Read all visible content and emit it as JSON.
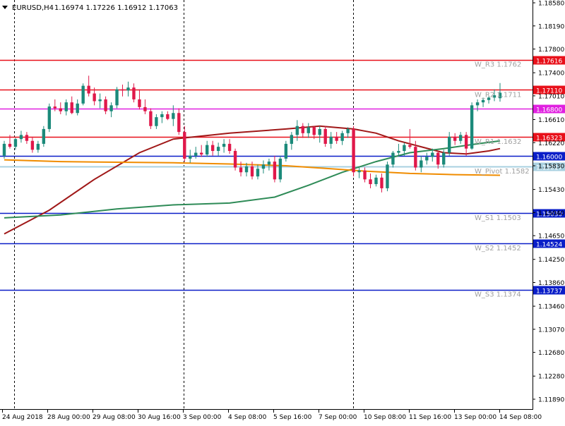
{
  "header": {
    "symbol": "EURUSD,H4",
    "ohlc": "1.16974 1.17226 1.16912 1.17063"
  },
  "colors": {
    "bull": "#1b8a7a",
    "bear": "#e0184a",
    "red_level": "#e8101a",
    "blue_level": "#0a1ec8",
    "magenta_level": "#e020e0",
    "pivot_level": "#a8d0e0",
    "ma_red": "#a01818",
    "ma_green": "#2e8b57",
    "ma_orange": "#f08c00",
    "pivot_label": "#a0a0a0"
  },
  "chart_data": {
    "type": "candlestick",
    "y_axis_ticks": [
      "1.18580",
      "1.18190",
      "1.17800",
      "1.17400",
      "1.17010",
      "1.16610",
      "1.16220",
      "1.15830",
      "1.15430",
      "1.15040",
      "1.14650",
      "1.14250",
      "1.13860",
      "1.13460",
      "1.13070",
      "1.12680",
      "1.12280",
      "1.11890"
    ],
    "x_axis_ticks": [
      "24 Aug 2018",
      "28 Aug 00:00",
      "29 Aug 08:00",
      "30 Aug 16:00",
      "3 Sep 00:00",
      "4 Sep 08:00",
      "5 Sep 16:00",
      "7 Sep 00:00",
      "10 Sep 08:00",
      "11 Sep 16:00",
      "13 Sep 00:00",
      "14 Sep 08:00"
    ],
    "ylim": [
      1.1189,
      1.1858
    ],
    "price_levels": [
      {
        "value": 1.17616,
        "label": "1.17616",
        "kind": "red_level"
      },
      {
        "value": 1.1711,
        "label": "1.17110",
        "kind": "red_level"
      },
      {
        "value": 1.168,
        "label": "1.16800",
        "kind": "magenta_level"
      },
      {
        "value": 1.16323,
        "label": "1.16323",
        "kind": "red_level"
      },
      {
        "value": 1.16,
        "label": "1.16000",
        "kind": "blue_level"
      },
      {
        "value": 1.15817,
        "label": "1.15817",
        "kind": "pivot_level"
      },
      {
        "value": 1.1503,
        "label": "1.15030",
        "kind": "blue_level"
      },
      {
        "value": 1.14524,
        "label": "1.14524",
        "kind": "blue_level"
      },
      {
        "value": 1.13737,
        "label": "1.13737",
        "kind": "blue_level"
      }
    ],
    "pivot_labels": [
      {
        "text": "W_R3 1.1762",
        "value": 1.1762
      },
      {
        "text": "W_R2 1.1711",
        "value": 1.1711
      },
      {
        "text": "W_R1 1.1632",
        "value": 1.1632
      },
      {
        "text": "W_Pivot 1.1582",
        "value": 1.1582
      },
      {
        "text": "W_S1 1.1503",
        "value": 1.1503
      },
      {
        "text": "W_S2 1.1452",
        "value": 1.1452
      },
      {
        "text": "W_S3 1.1374",
        "value": 1.1374
      }
    ],
    "candles": [
      [
        1.16,
        1.1625,
        1.1595,
        1.162
      ],
      [
        1.162,
        1.1635,
        1.1612,
        1.1615
      ],
      [
        1.1615,
        1.163,
        1.161,
        1.1628
      ],
      [
        1.1628,
        1.1642,
        1.1622,
        1.1635
      ],
      [
        1.1635,
        1.164,
        1.162,
        1.1625
      ],
      [
        1.1625,
        1.1632,
        1.1605,
        1.161
      ],
      [
        1.161,
        1.1625,
        1.1605,
        1.162
      ],
      [
        1.162,
        1.165,
        1.1615,
        1.1645
      ],
      [
        1.1645,
        1.1688,
        1.164,
        1.1683
      ],
      [
        1.1683,
        1.1695,
        1.1675,
        1.168
      ],
      [
        1.168,
        1.169,
        1.167,
        1.1675
      ],
      [
        1.1675,
        1.1695,
        1.1668,
        1.169
      ],
      [
        1.169,
        1.17,
        1.167,
        1.1672
      ],
      [
        1.1672,
        1.1695,
        1.1668,
        1.1688
      ],
      [
        1.1688,
        1.1722,
        1.1685,
        1.1718
      ],
      [
        1.1718,
        1.1735,
        1.17,
        1.1705
      ],
      [
        1.1705,
        1.1715,
        1.1685,
        1.1692
      ],
      [
        1.1692,
        1.1705,
        1.168,
        1.1695
      ],
      [
        1.1695,
        1.17,
        1.167,
        1.1675
      ],
      [
        1.1675,
        1.169,
        1.1665,
        1.1685
      ],
      [
        1.1685,
        1.1716,
        1.168,
        1.1712
      ],
      [
        1.1712,
        1.172,
        1.17,
        1.171
      ],
      [
        1.171,
        1.1725,
        1.17,
        1.1715
      ],
      [
        1.1715,
        1.1722,
        1.169,
        1.1695
      ],
      [
        1.1695,
        1.1712,
        1.1678,
        1.1682
      ],
      [
        1.1682,
        1.1695,
        1.167,
        1.1675
      ],
      [
        1.1675,
        1.168,
        1.1645,
        1.165
      ],
      [
        1.165,
        1.167,
        1.1645,
        1.1665
      ],
      [
        1.1665,
        1.1675,
        1.1655,
        1.167
      ],
      [
        1.167,
        1.1675,
        1.166,
        1.1662
      ],
      [
        1.1662,
        1.1685,
        1.165,
        1.1672
      ],
      [
        1.1672,
        1.168,
        1.1635,
        1.164
      ],
      [
        1.164,
        1.165,
        1.159,
        1.1595
      ],
      [
        1.1595,
        1.161,
        1.1588,
        1.16
      ],
      [
        1.16,
        1.1615,
        1.1595,
        1.1605
      ],
      [
        1.1605,
        1.1618,
        1.1598,
        1.1602
      ],
      [
        1.1602,
        1.1625,
        1.1598,
        1.1618
      ],
      [
        1.1618,
        1.1625,
        1.16,
        1.1608
      ],
      [
        1.1608,
        1.1622,
        1.16,
        1.1615
      ],
      [
        1.1615,
        1.1628,
        1.1605,
        1.162
      ],
      [
        1.162,
        1.1628,
        1.1603,
        1.1608
      ],
      [
        1.1608,
        1.1612,
        1.1575,
        1.158
      ],
      [
        1.158,
        1.159,
        1.1565,
        1.1572
      ],
      [
        1.1572,
        1.1588,
        1.1565,
        1.1582
      ],
      [
        1.1582,
        1.159,
        1.156,
        1.1565
      ],
      [
        1.1565,
        1.1585,
        1.156,
        1.1578
      ],
      [
        1.1578,
        1.1592,
        1.157,
        1.1585
      ],
      [
        1.1585,
        1.1595,
        1.1575,
        1.159
      ],
      [
        1.159,
        1.16,
        1.1555,
        1.156
      ],
      [
        1.156,
        1.16,
        1.1555,
        1.1595
      ],
      [
        1.1595,
        1.1625,
        1.159,
        1.162
      ],
      [
        1.162,
        1.164,
        1.161,
        1.1635
      ],
      [
        1.1635,
        1.166,
        1.1625,
        1.165
      ],
      [
        1.165,
        1.1655,
        1.163,
        1.1638
      ],
      [
        1.1638,
        1.1655,
        1.163,
        1.1648
      ],
      [
        1.1648,
        1.165,
        1.1628,
        1.1635
      ],
      [
        1.1635,
        1.165,
        1.1622,
        1.1645
      ],
      [
        1.1645,
        1.165,
        1.1615,
        1.162
      ],
      [
        1.162,
        1.164,
        1.1612,
        1.1632
      ],
      [
        1.1632,
        1.164,
        1.162,
        1.1625
      ],
      [
        1.1625,
        1.1642,
        1.1618,
        1.1638
      ],
      [
        1.1638,
        1.1648,
        1.163,
        1.1645
      ],
      [
        1.1645,
        1.165,
        1.1565,
        1.1572
      ],
      [
        1.1572,
        1.158,
        1.1562,
        1.1575
      ],
      [
        1.1575,
        1.158,
        1.1555,
        1.156
      ],
      [
        1.156,
        1.157,
        1.1545,
        1.1552
      ],
      [
        1.1552,
        1.1568,
        1.1548,
        1.1563
      ],
      [
        1.1563,
        1.157,
        1.1538,
        1.1545
      ],
      [
        1.1545,
        1.159,
        1.154,
        1.1585
      ],
      [
        1.1585,
        1.1608,
        1.158,
        1.1605
      ],
      [
        1.1605,
        1.162,
        1.16,
        1.1608
      ],
      [
        1.1608,
        1.1622,
        1.16,
        1.1618
      ],
      [
        1.1618,
        1.1645,
        1.1612,
        1.1615
      ],
      [
        1.1615,
        1.1625,
        1.1575,
        1.158
      ],
      [
        1.158,
        1.16,
        1.1572,
        1.1592
      ],
      [
        1.1592,
        1.1605,
        1.1585,
        1.1598
      ],
      [
        1.1598,
        1.1612,
        1.159,
        1.1605
      ],
      [
        1.1605,
        1.1608,
        1.1578,
        1.1585
      ],
      [
        1.1585,
        1.161,
        1.158,
        1.1605
      ],
      [
        1.1605,
        1.164,
        1.16,
        1.1632
      ],
      [
        1.1632,
        1.1638,
        1.1618,
        1.1625
      ],
      [
        1.1625,
        1.164,
        1.162,
        1.1635
      ],
      [
        1.1635,
        1.164,
        1.16,
        1.1612
      ],
      [
        1.1612,
        1.169,
        1.161,
        1.1685
      ],
      [
        1.1685,
        1.1695,
        1.1675,
        1.169
      ],
      [
        1.169,
        1.1698,
        1.1682,
        1.1694
      ],
      [
        1.1694,
        1.17,
        1.1688,
        1.1698
      ],
      [
        1.1698,
        1.1712,
        1.1692,
        1.1702
      ],
      [
        1.1697,
        1.17226,
        1.16912,
        1.17063
      ]
    ],
    "ma_red": [
      [
        0,
        1.1468
      ],
      [
        8,
        1.1508
      ],
      [
        16,
        1.156
      ],
      [
        24,
        1.1605
      ],
      [
        30,
        1.1628
      ],
      [
        40,
        1.1638
      ],
      [
        50,
        1.1645
      ],
      [
        56,
        1.165
      ],
      [
        62,
        1.1645
      ],
      [
        66,
        1.1638
      ],
      [
        70,
        1.1625
      ],
      [
        74,
        1.1615
      ],
      [
        78,
        1.1605
      ],
      [
        82,
        1.1603
      ],
      [
        86,
        1.1608
      ],
      [
        88,
        1.1612
      ]
    ],
    "ma_green": [
      [
        0,
        1.1495
      ],
      [
        10,
        1.15
      ],
      [
        20,
        1.151
      ],
      [
        30,
        1.1517
      ],
      [
        40,
        1.152
      ],
      [
        48,
        1.153
      ],
      [
        54,
        1.155
      ],
      [
        60,
        1.1572
      ],
      [
        66,
        1.159
      ],
      [
        72,
        1.1605
      ],
      [
        78,
        1.1612
      ],
      [
        84,
        1.162
      ],
      [
        88,
        1.1625
      ]
    ],
    "ma_orange": [
      [
        0,
        1.1593
      ],
      [
        10,
        1.159
      ],
      [
        20,
        1.1589
      ],
      [
        30,
        1.1588
      ],
      [
        40,
        1.1586
      ],
      [
        50,
        1.1583
      ],
      [
        58,
        1.1578
      ],
      [
        64,
        1.1574
      ],
      [
        72,
        1.157
      ],
      [
        80,
        1.1568
      ],
      [
        88,
        1.1567
      ]
    ]
  }
}
